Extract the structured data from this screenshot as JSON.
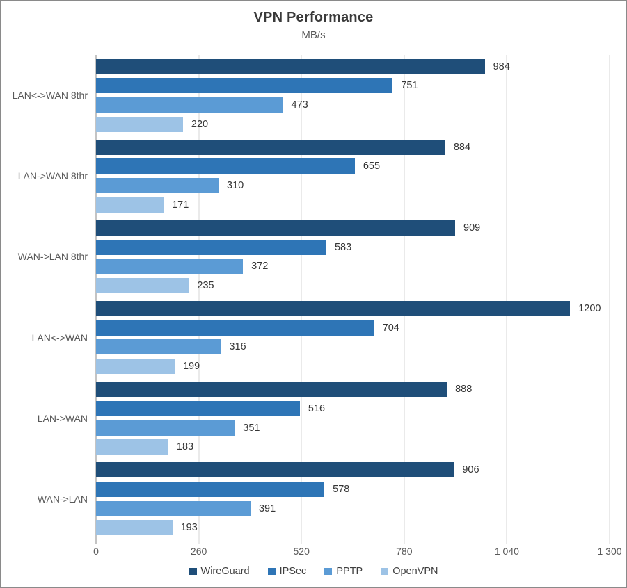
{
  "chart_data": {
    "type": "bar",
    "orientation": "horizontal",
    "title": "VPN Performance",
    "subtitle": "MB/s",
    "categories": [
      "LAN<->WAN 8thr",
      "LAN->WAN 8thr",
      "WAN->LAN 8thr",
      "LAN<->WAN",
      "LAN->WAN",
      "WAN->LAN"
    ],
    "series": [
      {
        "name": "WireGuard",
        "color": "#1F4E79",
        "values": [
          984,
          884,
          909,
          1200,
          888,
          906
        ]
      },
      {
        "name": "IPSec",
        "color": "#2E75B6",
        "values": [
          751,
          655,
          583,
          704,
          516,
          578
        ]
      },
      {
        "name": "PPTP",
        "color": "#5B9BD5",
        "values": [
          473,
          310,
          372,
          316,
          351,
          391
        ]
      },
      {
        "name": "OpenVPN",
        "color": "#9DC3E6",
        "values": [
          220,
          171,
          235,
          199,
          183,
          193
        ]
      }
    ],
    "xlim": [
      0,
      1300
    ],
    "x_ticks": [
      0,
      260,
      520,
      780,
      1040,
      1300
    ],
    "x_tick_labels": [
      "0",
      "260",
      "520",
      "780",
      "1 040",
      "1 300"
    ],
    "grid": "vertical-major-only",
    "legend_position": "bottom",
    "data_labels": "outside-end"
  }
}
